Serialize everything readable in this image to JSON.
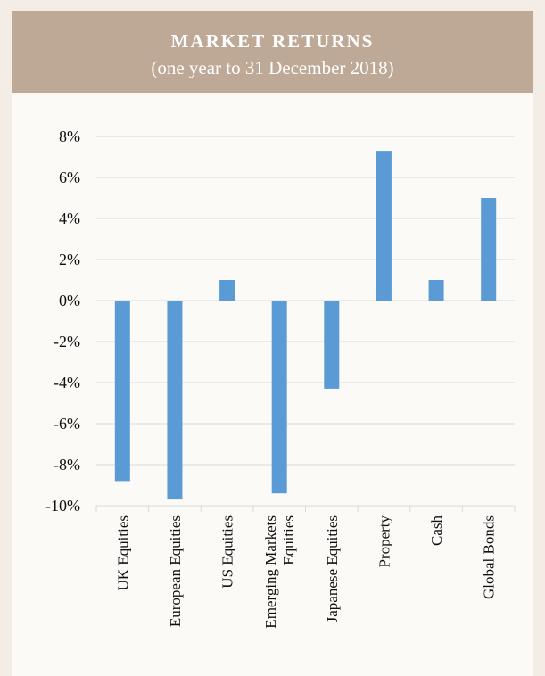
{
  "header": {
    "title": "MARKET RETURNS",
    "subtitle": "(one year to 31 December 2018)"
  },
  "colors": {
    "background": "#f3ede6",
    "header": "#bda996",
    "bar": "#5b9bd5",
    "grid": "#d9d9d9"
  },
  "chart_data": {
    "type": "bar",
    "title": "MARKET RETURNS",
    "subtitle": "(one year to 31 December 2018)",
    "xlabel": "",
    "ylabel": "",
    "ylim": [
      -10,
      8
    ],
    "yticks": [
      8,
      6,
      4,
      2,
      0,
      -2,
      -4,
      -6,
      -8,
      -10
    ],
    "ytick_labels": [
      "8%",
      "6%",
      "4%",
      "2%",
      "0%",
      "-2%",
      "-4%",
      "-6%",
      "-8%",
      "-10%"
    ],
    "grid": true,
    "legend": "none",
    "categories": [
      [
        "UK Equities"
      ],
      [
        "European Equities"
      ],
      [
        "US Equities"
      ],
      [
        "Emerging Markets",
        "Equities"
      ],
      [
        "Japanese Equities"
      ],
      [
        "Property"
      ],
      [
        "Cash"
      ],
      [
        "Global Bonds"
      ]
    ],
    "values": [
      -8.8,
      -9.7,
      1.0,
      -9.4,
      -4.3,
      7.3,
      1.0,
      5.0
    ]
  }
}
